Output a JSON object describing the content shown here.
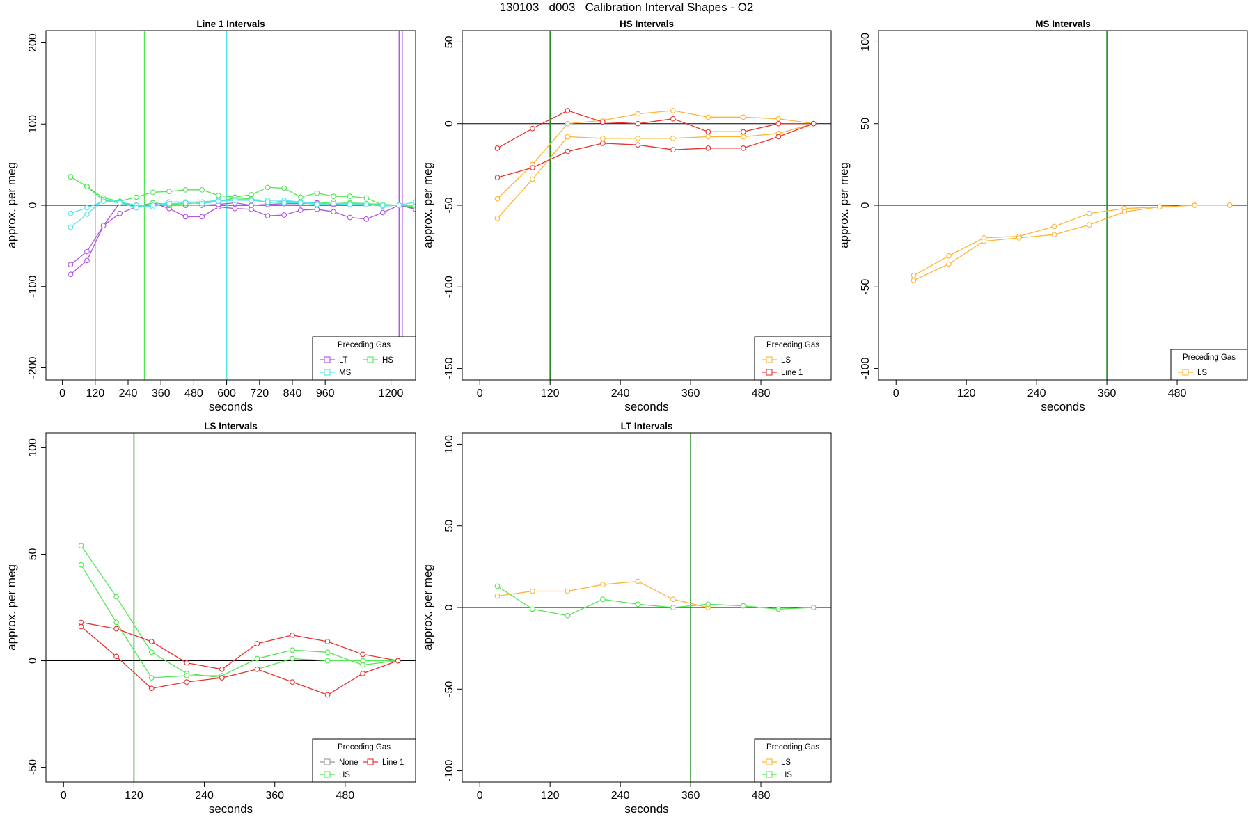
{
  "figure": {
    "suptitle": "130103   d003   Calibration Interval Shapes - O2"
  },
  "colors": {
    "LT": "#b352e6",
    "HS": "#52e652",
    "MS": "#52e6e6",
    "LS": "#ffb533",
    "Line 1": "#e63333",
    "None": "#999999",
    "refline": "#000000",
    "vline_green": "#228b22"
  },
  "chart_data": [
    {
      "type": "line",
      "title": "Line 1 Intervals",
      "xlabel": "seconds",
      "ylabel": "approx. per meg",
      "xlim": [
        -60,
        1290
      ],
      "ylim": [
        -215,
        215
      ],
      "xticks": [
        0,
        120,
        240,
        360,
        480,
        600,
        720,
        840,
        960,
        1200
      ],
      "yticks": [
        -200,
        -100,
        0,
        100,
        200
      ],
      "hlines": [
        0
      ],
      "vlines": [
        {
          "x": 120,
          "color": "HS"
        },
        {
          "x": 300,
          "color": "HS"
        },
        {
          "x": 600,
          "color": "MS"
        },
        {
          "x": 1230,
          "color": "LT"
        },
        {
          "x": 1241,
          "color": "LT"
        }
      ],
      "legend": {
        "title": "Preceding Gas",
        "entries": [
          "LT",
          "MS",
          "HS"
        ],
        "position": "bottom-right"
      },
      "series": [
        {
          "name": "LT",
          "x": [
            30,
            90,
            150,
            210,
            270,
            330,
            390,
            450,
            510,
            570,
            630,
            690,
            750,
            810,
            870,
            930,
            990,
            1050,
            1110,
            1170,
            1230,
            1290
          ],
          "y": [
            -85,
            -68,
            -25,
            -10,
            -2,
            3,
            -4,
            -14,
            -14,
            -2,
            -4,
            -5,
            -13,
            -12,
            -6,
            -5,
            -8,
            -15,
            -17,
            -9,
            0,
            -4
          ]
        },
        {
          "name": "LT",
          "x": [
            30,
            90,
            150,
            210,
            270,
            330,
            390,
            450,
            510,
            570,
            630,
            690,
            750,
            810,
            870,
            930,
            990,
            1050,
            1110,
            1170,
            1230,
            1290
          ],
          "y": [
            -73,
            -57,
            -25,
            3,
            0,
            0,
            0,
            0,
            0,
            1,
            3,
            0,
            1,
            2,
            2,
            3,
            1,
            1,
            1,
            -1,
            0,
            -5
          ]
        },
        {
          "name": "HS",
          "x": [
            30,
            90,
            150,
            210,
            270,
            330,
            390,
            450,
            510,
            570,
            630,
            690,
            750,
            810,
            870,
            930,
            990,
            1050,
            1110,
            1170,
            1230,
            1290
          ],
          "y": [
            35,
            23,
            9,
            5,
            10,
            16,
            17,
            19,
            19,
            12,
            10,
            13,
            22,
            21,
            10,
            15,
            11,
            11,
            9,
            0,
            0,
            -2
          ]
        },
        {
          "name": "HS",
          "x": [
            30,
            90,
            150,
            210,
            270,
            330,
            390,
            450,
            510,
            570,
            630,
            690,
            750,
            810,
            870,
            930,
            990,
            1050,
            1110,
            1170,
            1230,
            1290
          ],
          "y": [
            35,
            23,
            6,
            4,
            -3,
            3,
            1,
            2,
            3,
            5,
            9,
            8,
            3,
            5,
            4,
            2,
            4,
            3,
            2,
            1,
            0,
            0
          ]
        },
        {
          "name": "MS",
          "x": [
            30,
            90,
            150,
            210,
            270,
            330,
            390,
            450,
            510,
            570,
            630,
            690,
            750,
            810,
            870,
            930,
            990,
            1050,
            1110,
            1170,
            1230,
            1290
          ],
          "y": [
            -27,
            -11,
            7,
            4,
            0,
            -2,
            4,
            4,
            4,
            6,
            7,
            7,
            6,
            6,
            4,
            2,
            2,
            2,
            1,
            -1,
            0,
            0
          ]
        },
        {
          "name": "MS",
          "x": [
            30,
            90,
            150,
            210,
            270,
            330,
            390,
            450,
            510,
            570,
            630,
            690,
            750,
            810,
            870,
            930,
            990,
            1050,
            1110,
            1170,
            1230,
            1290
          ],
          "y": [
            -10,
            -3,
            5,
            3,
            -3,
            0,
            2,
            3,
            2,
            5,
            6,
            6,
            4,
            3,
            3,
            1,
            2,
            1,
            1,
            0,
            0,
            4
          ]
        }
      ]
    },
    {
      "type": "line",
      "title": "HS Intervals",
      "xlabel": "seconds",
      "ylabel": "approx. per meg",
      "xlim": [
        -30,
        600
      ],
      "ylim": [
        -157,
        57
      ],
      "xticks": [
        0,
        120,
        240,
        360,
        480
      ],
      "yticks": [
        -150,
        -100,
        -50,
        0,
        50
      ],
      "hlines": [
        0
      ],
      "vlines": [
        {
          "x": 120,
          "color": "vline_green"
        }
      ],
      "legend": {
        "title": "Preceding Gas",
        "entries": [
          "LS",
          "Line 1"
        ],
        "position": "bottom-right"
      },
      "series": [
        {
          "name": "LS",
          "x": [
            30,
            90,
            150,
            210,
            270,
            330,
            390,
            450,
            510,
            570
          ],
          "y": [
            -46,
            -25,
            0,
            2,
            6,
            8,
            4,
            4,
            3,
            0
          ]
        },
        {
          "name": "LS",
          "x": [
            30,
            90,
            150,
            210,
            270,
            330,
            390,
            450,
            510,
            570
          ],
          "y": [
            -58,
            -34,
            -8,
            -9,
            -9,
            -9,
            -8,
            -8,
            -6,
            0
          ]
        },
        {
          "name": "Line 1",
          "x": [
            30,
            90,
            150,
            210,
            270,
            330,
            390,
            450,
            510,
            570
          ],
          "y": [
            -15,
            -3,
            8,
            1,
            0,
            3,
            -5,
            -5,
            0,
            0
          ]
        },
        {
          "name": "Line 1",
          "x": [
            30,
            90,
            150,
            210,
            270,
            330,
            390,
            450,
            510,
            570
          ],
          "y": [
            -33,
            -27,
            -17,
            -12,
            -13,
            -16,
            -15,
            -15,
            -8,
            0
          ]
        }
      ]
    },
    {
      "type": "line",
      "title": "MS Intervals",
      "xlabel": "seconds",
      "ylabel": "approx. per meg",
      "xlim": [
        -30,
        600
      ],
      "ylim": [
        -107,
        107
      ],
      "xticks": [
        0,
        120,
        240,
        360,
        480
      ],
      "yticks": [
        -100,
        -50,
        0,
        50,
        100
      ],
      "hlines": [
        0
      ],
      "vlines": [
        {
          "x": 360,
          "color": "vline_green"
        }
      ],
      "legend": {
        "title": "Preceding Gas",
        "entries": [
          "LS"
        ],
        "position": "bottom-right"
      },
      "series": [
        {
          "name": "LS",
          "x": [
            30,
            90,
            150,
            210,
            270,
            330,
            390,
            450,
            510,
            570
          ],
          "y": [
            -43,
            -31,
            -20,
            -19,
            -13,
            -5,
            -2,
            -1,
            0,
            0
          ]
        },
        {
          "name": "LS",
          "x": [
            30,
            90,
            150,
            210,
            270,
            330,
            390,
            450,
            510,
            570
          ],
          "y": [
            -46,
            -36,
            -22,
            -20,
            -18,
            -12,
            -4,
            -1,
            0,
            0
          ]
        }
      ]
    },
    {
      "type": "line",
      "title": "LS Intervals",
      "xlabel": "seconds",
      "ylabel": "approx. per meg",
      "xlim": [
        -30,
        600
      ],
      "ylim": [
        -57,
        107
      ],
      "xticks": [
        0,
        120,
        240,
        360,
        480
      ],
      "yticks": [
        -50,
        0,
        50,
        100
      ],
      "hlines": [
        0
      ],
      "vlines": [
        {
          "x": 120,
          "color": "vline_green"
        }
      ],
      "legend": {
        "title": "Preceding Gas",
        "entries": [
          "None",
          "HS",
          "Line 1"
        ],
        "position": "bottom-right"
      },
      "series": [
        {
          "name": "HS",
          "x": [
            30,
            90,
            150,
            210,
            270,
            330,
            390,
            450,
            510,
            570
          ],
          "y": [
            54,
            30,
            4,
            -6,
            -8,
            -4,
            1,
            0,
            0,
            0
          ]
        },
        {
          "name": "HS",
          "x": [
            30,
            90,
            150,
            210,
            270,
            330,
            390,
            450,
            510,
            570
          ],
          "y": [
            45,
            18,
            -8,
            -7,
            -7,
            1,
            5,
            4,
            -2,
            0
          ]
        },
        {
          "name": "Line 1",
          "x": [
            30,
            90,
            150,
            210,
            270,
            330,
            390,
            450,
            510,
            570
          ],
          "y": [
            18,
            15,
            9,
            -1,
            -4,
            8,
            12,
            9,
            3,
            0
          ]
        },
        {
          "name": "Line 1",
          "x": [
            30,
            90,
            150,
            210,
            270,
            330,
            390,
            450,
            510,
            570
          ],
          "y": [
            16,
            2,
            -13,
            -10,
            -8,
            -4,
            -10,
            -16,
            -6,
            0
          ]
        }
      ]
    },
    {
      "type": "line",
      "title": "LT Intervals",
      "xlabel": "seconds",
      "ylabel": "approx. per meg",
      "xlim": [
        -30,
        600
      ],
      "ylim": [
        -107,
        107
      ],
      "xticks": [
        0,
        120,
        240,
        360,
        480
      ],
      "yticks": [
        -100,
        -50,
        0,
        50,
        100
      ],
      "hlines": [
        0
      ],
      "vlines": [
        {
          "x": 360,
          "color": "vline_green"
        }
      ],
      "legend": {
        "title": "Preceding Gas",
        "entries": [
          "LS",
          "HS"
        ],
        "position": "bottom-right"
      },
      "series": [
        {
          "name": "LS",
          "x": [
            30,
            90,
            150,
            210,
            270,
            330,
            390
          ],
          "y": [
            7,
            10,
            10,
            14,
            16,
            5,
            0
          ]
        },
        {
          "name": "HS",
          "x": [
            30,
            90,
            150,
            210,
            270,
            330,
            390,
            450,
            510,
            570
          ],
          "y": [
            13,
            -1,
            -5,
            5,
            2,
            0,
            2,
            1,
            -1,
            0
          ]
        }
      ]
    }
  ]
}
